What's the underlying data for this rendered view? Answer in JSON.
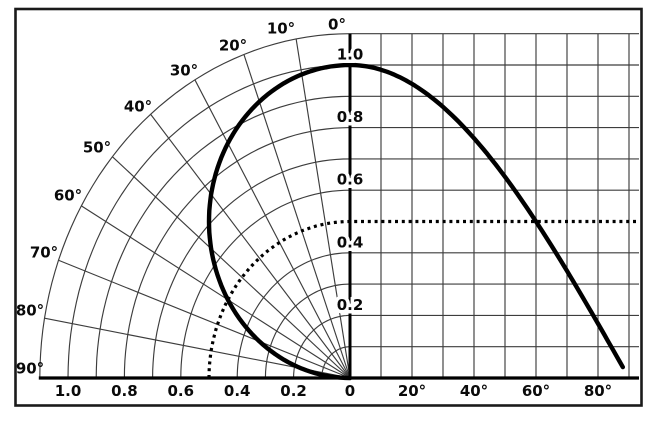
{
  "colors": {
    "ink": "#000000",
    "grid": "#3d3d3d",
    "background": "#ffffff",
    "frame": "#1a1a1a"
  },
  "chart_data": {
    "type": "line",
    "description": "Cosine pattern plotted in polar coordinates (left quarter-circle grid) and rectangular coordinates (right grid)",
    "grid": true,
    "ylim": [
      0,
      1.1
    ],
    "polar_section": {
      "angle_ticks": {
        "degrees": [
          0,
          10,
          20,
          30,
          40,
          50,
          60,
          70,
          80,
          90
        ],
        "labels": [
          "0°",
          "10°",
          "20°",
          "30°",
          "40°",
          "50°",
          "60°",
          "70°",
          "80°",
          "90°"
        ]
      },
      "radius_ticks": {
        "values": [
          1.0,
          0.8,
          0.6,
          0.4,
          0.2
        ],
        "labels": [
          "1.0",
          "0.8",
          "0.6",
          "0.4",
          "0.2"
        ]
      },
      "arc_radii": [
        0.1,
        0.2,
        0.3,
        0.4,
        0.6,
        0.7,
        0.8,
        0.9,
        1.0,
        1.1
      ],
      "radial_line_step_deg": 10,
      "max_radius": 1.1
    },
    "rect_section": {
      "x_ticks": {
        "degrees": [
          20,
          40,
          60,
          80
        ],
        "labels": [
          "20°",
          "40°",
          "60°",
          "80°"
        ]
      },
      "y_ticks": {
        "values": [
          1.0,
          0.8,
          0.6,
          0.4,
          0.2
        ],
        "labels": [
          "1.0",
          "0.8",
          "0.6",
          "0.4",
          "0.2"
        ]
      },
      "x_range_deg": [
        0,
        90
      ],
      "y_gridlines": [
        0.1,
        0.2,
        0.3,
        0.4,
        0.6,
        0.7,
        0.8,
        0.9,
        1.0,
        1.1
      ],
      "x_gridline_step_deg": 10
    },
    "origin_tick_label": "0",
    "series": [
      {
        "name": "solid-cosine-curve",
        "style": "solid",
        "x_deg": [
          0,
          10,
          20,
          30,
          40,
          50,
          60,
          70,
          80,
          90
        ],
        "values": [
          1.0,
          0.985,
          0.94,
          0.866,
          0.766,
          0.643,
          0.5,
          0.342,
          0.174,
          0.0
        ]
      },
      {
        "name": "dotted-half-value-reference",
        "style": "dotted",
        "value": 0.5
      }
    ]
  }
}
